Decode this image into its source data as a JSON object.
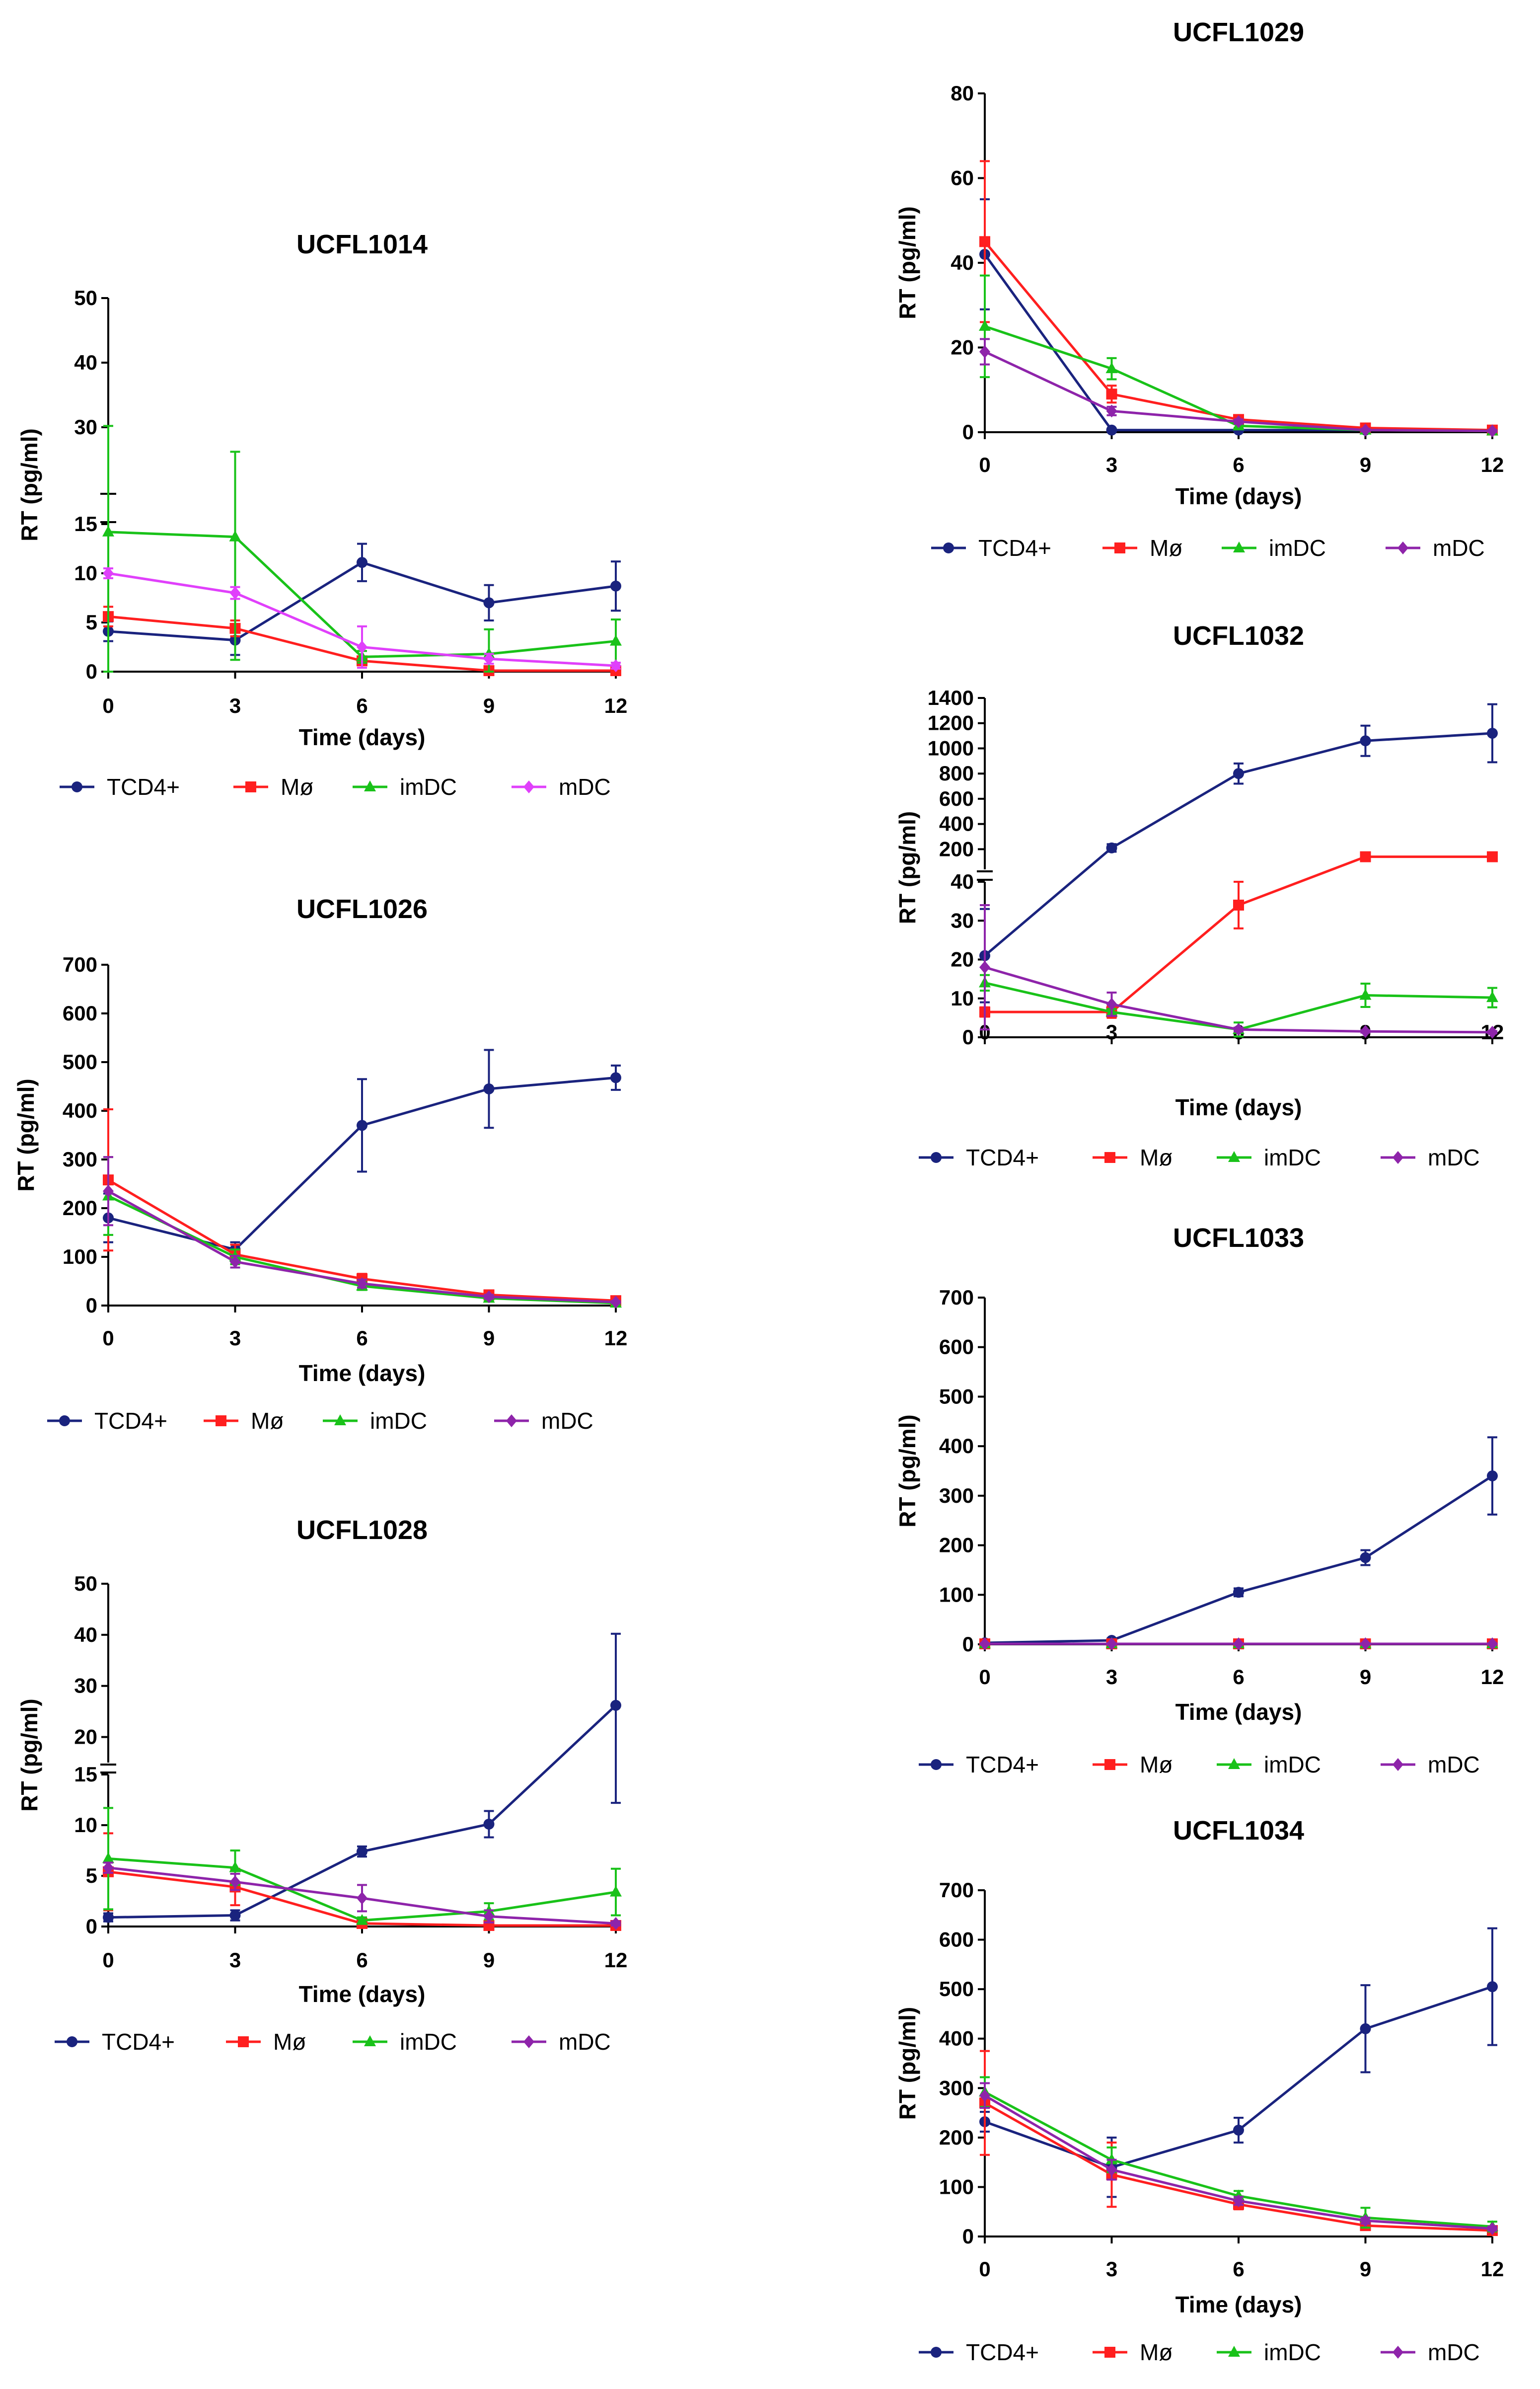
{
  "figure": {
    "series_names": [
      "TCD4+",
      "Mø",
      "imDC",
      "mDC"
    ]
  },
  "chart_data": [
    {
      "type": "line",
      "title": "UCFL1014",
      "xlabel": "Time (days)",
      "ylabel": "RT (pg/ml)",
      "x": [
        0,
        3,
        6,
        9,
        12
      ],
      "ylim": [
        0,
        50
      ],
      "axis_break": {
        "lower": [
          0,
          15
        ],
        "upper": [
          20,
          50
        ]
      },
      "yticks_lower": [
        0,
        5,
        10,
        15
      ],
      "yticks_upper": [
        30,
        40,
        50
      ],
      "series": [
        {
          "name": "TCD4+",
          "color": "#1a237e",
          "marker": "circle",
          "values": [
            4.1,
            3.2,
            11.1,
            7.0,
            8.7
          ],
          "err": [
            1.0,
            1.5,
            1.9,
            1.8,
            2.5
          ]
        },
        {
          "name": "Mø",
          "color": "#ff1f1f",
          "marker": "square",
          "values": [
            5.6,
            4.4,
            1.1,
            0.1,
            0.1
          ],
          "err": [
            1.0,
            0.8,
            0.3,
            0.1,
            0.1
          ]
        },
        {
          "name": "imDC",
          "color": "#19c219",
          "marker": "triangle",
          "values": [
            14.2,
            13.7,
            1.5,
            1.8,
            3.1
          ],
          "err": [
            16.0,
            12.5,
            0.6,
            2.5,
            2.2
          ]
        },
        {
          "name": "mDC",
          "color": "#e040fb",
          "marker": "diamond",
          "values": [
            10.0,
            8.0,
            2.5,
            1.3,
            0.6
          ],
          "err": [
            0.5,
            0.6,
            2.1,
            0.5,
            0.3
          ]
        }
      ]
    },
    {
      "type": "line",
      "title": "UCFL1026",
      "xlabel": "Time (days)",
      "ylabel": "RT (pg/ml)",
      "x": [
        0,
        3,
        6,
        9,
        12
      ],
      "ylim": [
        0,
        700
      ],
      "yticks": [
        0,
        100,
        200,
        300,
        400,
        500,
        600,
        700
      ],
      "series": [
        {
          "name": "TCD4+",
          "color": "#1a237e",
          "marker": "circle",
          "values": [
            180,
            115,
            370,
            445,
            468
          ],
          "err": [
            50,
            15,
            95,
            80,
            25
          ]
        },
        {
          "name": "Mø",
          "color": "#ff1f1f",
          "marker": "square",
          "values": [
            258,
            105,
            55,
            22,
            10
          ],
          "err": [
            145,
            20,
            10,
            5,
            3
          ]
        },
        {
          "name": "imDC",
          "color": "#19c219",
          "marker": "triangle",
          "values": [
            225,
            100,
            40,
            15,
            5
          ],
          "err": [
            80,
            15,
            8,
            4,
            2
          ]
        },
        {
          "name": "mDC",
          "color": "#8e24aa",
          "marker": "diamond",
          "values": [
            235,
            90,
            45,
            18,
            7
          ],
          "err": [
            70,
            12,
            8,
            4,
            2
          ]
        }
      ]
    },
    {
      "type": "line",
      "title": "UCFL1028",
      "xlabel": "Time (days)",
      "ylabel": "RT (pg/ml)",
      "x": [
        0,
        3,
        6,
        9,
        12
      ],
      "ylim": [
        0,
        50
      ],
      "axis_break": {
        "lower": [
          0,
          15
        ],
        "upper": [
          15,
          50
        ]
      },
      "yticks_lower": [
        0,
        5,
        10,
        15
      ],
      "yticks_upper": [
        20,
        30,
        40,
        50
      ],
      "series": [
        {
          "name": "TCD4+",
          "color": "#1a237e",
          "marker": "circle",
          "values": [
            0.9,
            1.1,
            7.4,
            10.1,
            26.2
          ],
          "err": [
            0.4,
            0.5,
            0.5,
            1.3,
            14.0
          ]
        },
        {
          "name": "Mø",
          "color": "#ff1f1f",
          "marker": "square",
          "values": [
            5.4,
            3.9,
            0.3,
            0.1,
            0.1
          ],
          "err": [
            3.8,
            1.8,
            0.2,
            0.1,
            0.1
          ]
        },
        {
          "name": "imDC",
          "color": "#19c219",
          "marker": "triangle",
          "values": [
            6.7,
            5.8,
            0.6,
            1.5,
            3.4
          ],
          "err": [
            5.0,
            1.7,
            0.3,
            0.8,
            2.3
          ]
        },
        {
          "name": "mDC",
          "color": "#8e24aa",
          "marker": "diamond",
          "values": [
            5.8,
            4.4,
            2.8,
            1.0,
            0.3
          ],
          "err": [
            0.5,
            0.8,
            1.3,
            0.6,
            0.2
          ]
        }
      ]
    },
    {
      "type": "line",
      "title": "UCFL1029",
      "xlabel": "Time (days)",
      "ylabel": "RT (pg/ml)",
      "x": [
        0,
        3,
        6,
        9,
        12
      ],
      "ylim": [
        0,
        80
      ],
      "yticks": [
        0,
        20,
        40,
        60,
        80
      ],
      "series": [
        {
          "name": "TCD4+",
          "color": "#1a237e",
          "marker": "circle",
          "values": [
            42,
            0.5,
            0.5,
            0.5,
            0.5
          ],
          "err": [
            13,
            0.3,
            0.3,
            0.3,
            0.3
          ]
        },
        {
          "name": "Mø",
          "color": "#ff1f1f",
          "marker": "square",
          "values": [
            45,
            9,
            3,
            1,
            0.5
          ],
          "err": [
            19,
            2,
            1,
            0.5,
            0.3
          ]
        },
        {
          "name": "imDC",
          "color": "#19c219",
          "marker": "triangle",
          "values": [
            25,
            15,
            1.5,
            0.5,
            0.3
          ],
          "err": [
            12,
            2.5,
            0.5,
            0.3,
            0.2
          ]
        },
        {
          "name": "mDC",
          "color": "#8e24aa",
          "marker": "diamond",
          "values": [
            19,
            5,
            2.5,
            0.5,
            0.3
          ],
          "err": [
            3,
            1,
            0.5,
            0.3,
            0.2
          ]
        }
      ]
    },
    {
      "type": "line",
      "title": "UCFL1032",
      "xlabel": "Time (days)",
      "ylabel": "RT (pg/ml)",
      "x": [
        0,
        3,
        6,
        9,
        12
      ],
      "ylim": [
        0,
        1400
      ],
      "axis_break": {
        "lower": [
          0,
          40
        ],
        "upper": [
          40,
          1400
        ]
      },
      "yticks_lower": [
        0,
        10,
        20,
        30,
        40
      ],
      "yticks_upper": [
        200,
        400,
        600,
        800,
        1000,
        1200,
        1400
      ],
      "series": [
        {
          "name": "TCD4+",
          "color": "#1a237e",
          "marker": "circle",
          "values": [
            21,
            210,
            800,
            1060,
            1120
          ],
          "err": [
            12,
            30,
            80,
            120,
            230
          ]
        },
        {
          "name": "Mø",
          "color": "#ff1f1f",
          "marker": "square",
          "values": [
            6.5,
            6.5,
            34,
            140,
            140
          ],
          "err": [
            1.2,
            1.5,
            6,
            8,
            10
          ]
        },
        {
          "name": "imDC",
          "color": "#19c219",
          "marker": "triangle",
          "values": [
            14,
            6.5,
            2,
            10.8,
            10.2
          ],
          "err": [
            2,
            0.8,
            1.8,
            3,
            2.5
          ]
        },
        {
          "name": "mDC",
          "color": "#8e24aa",
          "marker": "diamond",
          "values": [
            18,
            8.5,
            2,
            1.5,
            1.3
          ],
          "err": [
            16,
            3,
            0.5,
            0.3,
            0.3
          ]
        }
      ]
    },
    {
      "type": "line",
      "title": "UCFL1033",
      "xlabel": "Time (days)",
      "ylabel": "RT (pg/ml)",
      "x": [
        0,
        3,
        6,
        9,
        12
      ],
      "ylim": [
        0,
        700
      ],
      "yticks": [
        0,
        100,
        200,
        300,
        400,
        500,
        600,
        700
      ],
      "series": [
        {
          "name": "TCD4+",
          "color": "#1a237e",
          "marker": "circle",
          "values": [
            3,
            8,
            105,
            175,
            340
          ],
          "err": [
            2,
            4,
            8,
            15,
            78
          ]
        },
        {
          "name": "Mø",
          "color": "#ff1f1f",
          "marker": "square",
          "values": [
            1,
            1,
            1,
            1,
            1
          ],
          "err": [
            1,
            1,
            1,
            1,
            1
          ]
        },
        {
          "name": "imDC",
          "color": "#19c219",
          "marker": "triangle",
          "values": [
            1,
            1,
            1,
            1,
            1
          ],
          "err": [
            1,
            1,
            1,
            1,
            1
          ]
        },
        {
          "name": "mDC",
          "color": "#8e24aa",
          "marker": "diamond",
          "values": [
            1,
            1,
            1,
            1,
            1
          ],
          "err": [
            1,
            1,
            1,
            1,
            1
          ]
        }
      ]
    },
    {
      "type": "line",
      "title": "UCFL1034",
      "xlabel": "Time (days)",
      "ylabel": "RT (pg/ml)",
      "x": [
        0,
        3,
        6,
        9,
        12
      ],
      "ylim": [
        0,
        700
      ],
      "yticks": [
        0,
        100,
        200,
        300,
        400,
        500,
        600,
        700
      ],
      "series": [
        {
          "name": "TCD4+",
          "color": "#1a237e",
          "marker": "circle",
          "values": [
            232,
            140,
            215,
            420,
            505
          ],
          "err": [
            20,
            60,
            25,
            88,
            118
          ]
        },
        {
          "name": "Mø",
          "color": "#ff1f1f",
          "marker": "square",
          "values": [
            270,
            125,
            65,
            22,
            12
          ],
          "err": [
            105,
            65,
            10,
            5,
            3
          ]
        },
        {
          "name": "imDC",
          "color": "#19c219",
          "marker": "triangle",
          "values": [
            292,
            155,
            82,
            38,
            20
          ],
          "err": [
            30,
            25,
            10,
            20,
            10
          ]
        },
        {
          "name": "mDC",
          "color": "#8e24aa",
          "marker": "diamond",
          "values": [
            285,
            135,
            72,
            32,
            16
          ],
          "err": [
            25,
            20,
            8,
            6,
            4
          ]
        }
      ]
    }
  ]
}
